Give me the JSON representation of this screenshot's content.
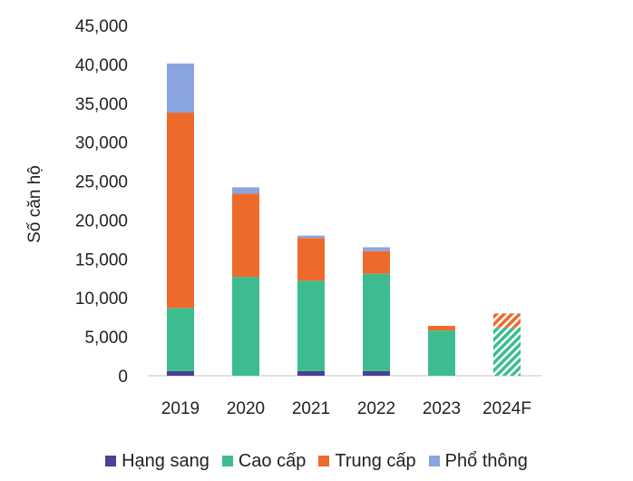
{
  "chart_data": {
    "type": "bar",
    "stacked": true,
    "title": "",
    "xlabel": "",
    "ylabel": "Số căn hộ",
    "ylim": [
      0,
      45000
    ],
    "yticks": [
      "0",
      "5,000",
      "10,000",
      "15,000",
      "20,000",
      "25,000",
      "30,000",
      "35,000",
      "40,000",
      "45,000"
    ],
    "categories": [
      "2019",
      "2020",
      "2021",
      "2022",
      "2023",
      "2024F"
    ],
    "forecast_category": "2024F",
    "grid": false,
    "legend_position": "bottom",
    "series": [
      {
        "name": "Hạng sang",
        "color": "#4b3f96",
        "values": [
          600,
          0,
          600,
          600,
          0,
          0
        ]
      },
      {
        "name": "Cao cấp",
        "color": "#3dbd8f",
        "values": [
          8100,
          12700,
          11600,
          12500,
          5800,
          6200
        ]
      },
      {
        "name": "Trung cấp",
        "color": "#ee6a2b",
        "values": [
          25100,
          10700,
          5500,
          2900,
          600,
          1800
        ]
      },
      {
        "name": "Phổ thông",
        "color": "#8aa4e0",
        "values": [
          6300,
          800,
          300,
          500,
          0,
          0
        ]
      }
    ]
  }
}
